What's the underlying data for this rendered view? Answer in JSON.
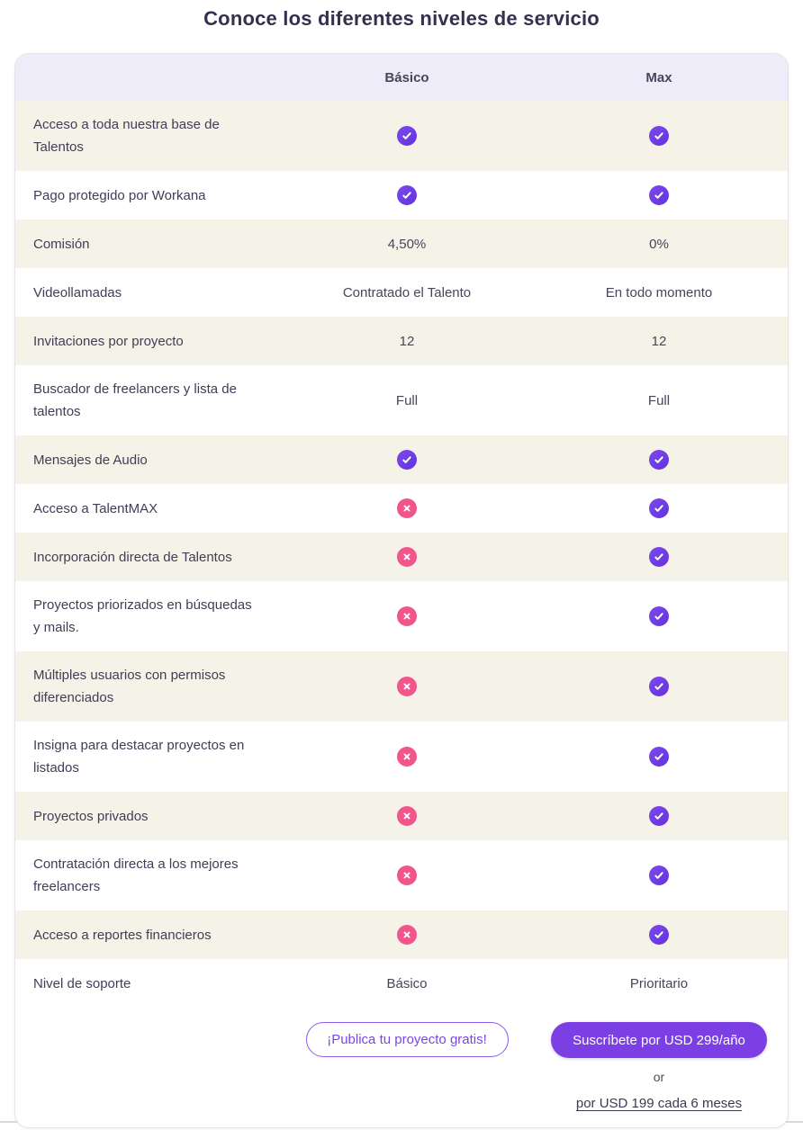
{
  "page_title": "Conoce los diferentes niveles de servicio",
  "table": {
    "columns": [
      "Básico",
      "Max"
    ],
    "rows": [
      {
        "label": "Acceso a toda nuestra base de Talentos",
        "basico": "check-icon",
        "max": "check-icon"
      },
      {
        "label": "Pago protegido por Workana",
        "basico": "check-icon",
        "max": "check-icon"
      },
      {
        "label": "Comisión",
        "basico": "4,50%",
        "max": "0%"
      },
      {
        "label": "Videollamadas",
        "basico": "Contratado el Talento",
        "max": "En todo momento"
      },
      {
        "label": "Invitaciones por proyecto",
        "basico": "12",
        "max": "12"
      },
      {
        "label": "Buscador de freelancers y lista de talentos",
        "basico": "Full",
        "max": "Full"
      },
      {
        "label": "Mensajes de Audio",
        "basico": "check-icon",
        "max": "check-icon"
      },
      {
        "label": "Acceso a TalentMAX",
        "basico": "cross-icon",
        "max": "check-icon"
      },
      {
        "label": "Incorporación directa de Talentos",
        "basico": "cross-icon",
        "max": "check-icon"
      },
      {
        "label": "Proyectos priorizados en búsquedas y mails.",
        "basico": "cross-icon",
        "max": "check-icon"
      },
      {
        "label": "Múltiples usuarios con permisos diferenciados",
        "basico": "cross-icon",
        "max": "check-icon"
      },
      {
        "label": "Insigna para destacar proyectos en listados",
        "basico": "cross-icon",
        "max": "check-icon"
      },
      {
        "label": "Proyectos privados",
        "basico": "cross-icon",
        "max": "check-icon"
      },
      {
        "label": "Contratación directa a los mejores freelancers",
        "basico": "cross-icon",
        "max": "check-icon"
      },
      {
        "label": "Acceso a reportes financieros",
        "basico": "cross-icon",
        "max": "check-icon"
      },
      {
        "label": "Nivel de soporte",
        "basico": "Básico",
        "max": "Prioritario"
      }
    ]
  },
  "footer": {
    "basico_button": "¡Publica tu proyecto gratis!",
    "max_button": "Suscríbete por USD 299/año",
    "or_label": "or",
    "alt_price_link": "por USD 199 cada 6 meses"
  },
  "colors": {
    "check_icon": "#6B3BE0",
    "cross_icon": "#F2558C",
    "header_bg": "#EFECFA",
    "row_alt_bg": "#F5F3E7",
    "accent_purple": "#7B3FE4",
    "title_text": "#32324E"
  }
}
